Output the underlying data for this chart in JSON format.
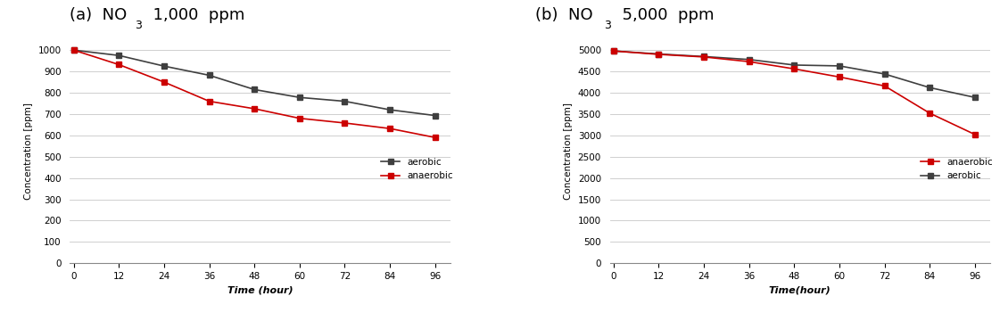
{
  "panel_a": {
    "title_prefix": "(a)  NO",
    "title_suffix": "  1,000  ppm",
    "xlabel": "Time (hour)",
    "ylabel": "Concentration [ppm]",
    "time": [
      0,
      12,
      24,
      36,
      48,
      60,
      72,
      84,
      96
    ],
    "aerobic": [
      1000,
      975,
      925,
      882,
      815,
      778,
      760,
      720,
      693
    ],
    "anaerobic": [
      1000,
      932,
      850,
      760,
      725,
      680,
      658,
      632,
      590
    ],
    "aerobic_color": "#3f3f3f",
    "anaerobic_color": "#cc0000",
    "ylim": [
      0,
      1050
    ],
    "yticks": [
      0,
      100,
      200,
      300,
      400,
      500,
      600,
      700,
      800,
      900,
      1000
    ],
    "xticks": [
      0,
      12,
      24,
      36,
      48,
      60,
      72,
      84,
      96
    ],
    "legend_labels": [
      "aerobic",
      "anaerobic"
    ],
    "legend_colors": [
      "#3f3f3f",
      "#cc0000"
    ]
  },
  "panel_b": {
    "title_prefix": "(b)  NO",
    "title_suffix": "  5,000  ppm",
    "xlabel": "Time(hour)",
    "ylabel": "Concentration [ppm]",
    "time": [
      0,
      12,
      24,
      36,
      48,
      60,
      72,
      84,
      96
    ],
    "anaerobic": [
      4980,
      4900,
      4840,
      4730,
      4560,
      4370,
      4160,
      3520,
      3020
    ],
    "aerobic": [
      4980,
      4910,
      4850,
      4780,
      4650,
      4630,
      4440,
      4120,
      3890
    ],
    "aerobic_color": "#3f3f3f",
    "anaerobic_color": "#cc0000",
    "ylim": [
      0,
      5250
    ],
    "yticks": [
      0,
      500,
      1000,
      1500,
      2000,
      2500,
      3000,
      3500,
      4000,
      4500,
      5000
    ],
    "xticks": [
      0,
      12,
      24,
      36,
      48,
      60,
      72,
      84,
      96
    ],
    "legend_labels": [
      "anaerobic",
      "aerobic"
    ],
    "legend_colors": [
      "#cc0000",
      "#3f3f3f"
    ]
  }
}
